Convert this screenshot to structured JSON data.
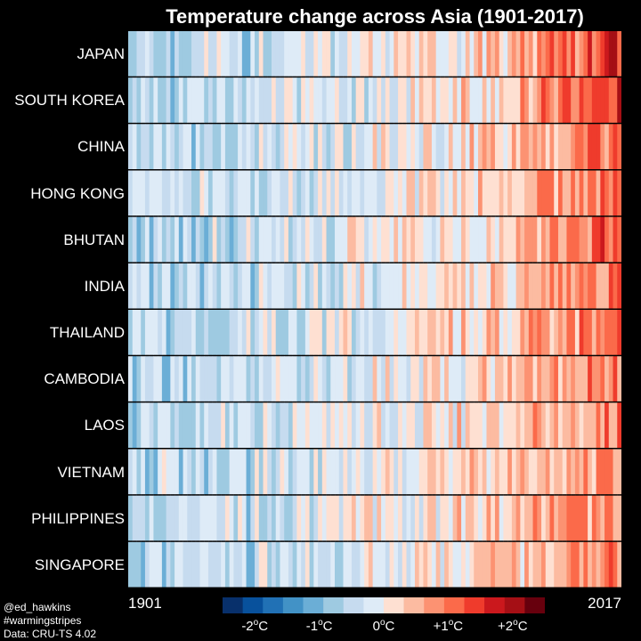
{
  "chart_data": {
    "type": "heatmap",
    "title": "Temperature change across Asia (1901-2017)",
    "x_start_label": "1901",
    "x_end_label": "2017",
    "years": [
      1901,
      2017
    ],
    "rows": [
      "JAPAN",
      "SOUTH KOREA",
      "CHINA",
      "HONG KONG",
      "BHUTAN",
      "INDIA",
      "THAILAND",
      "CAMBODIA",
      "LAOS",
      "VIETNAM",
      "PHILIPPINES",
      "SINGAPORE"
    ],
    "value_unit": "°C",
    "colorbar": {
      "range": [
        -2.5,
        2.5
      ],
      "ticks": [
        {
          "value": -2,
          "label": "-2",
          "unit": "C"
        },
        {
          "value": -1,
          "label": "-1",
          "unit": "C"
        },
        {
          "value": 0,
          "label": "0",
          "unit": "C"
        },
        {
          "value": 1,
          "label": "+1",
          "unit": "C"
        },
        {
          "value": 2,
          "label": "+2",
          "unit": "C"
        }
      ],
      "colors": [
        "#08306b",
        "#08519c",
        "#2171b5",
        "#4292c6",
        "#6baed6",
        "#9ecae1",
        "#c6dbef",
        "#deebf7",
        "#fee0d2",
        "#fcbba1",
        "#fc9272",
        "#fb6a4a",
        "#ef3b2c",
        "#cb181d",
        "#a50f15",
        "#67000d"
      ]
    },
    "grid": false,
    "legend_position": "bottom"
  },
  "credits": {
    "handle": "@ed_hawkins",
    "hashtag": "#warmingstripes",
    "source": "Data: CRU-TS 4.02"
  }
}
